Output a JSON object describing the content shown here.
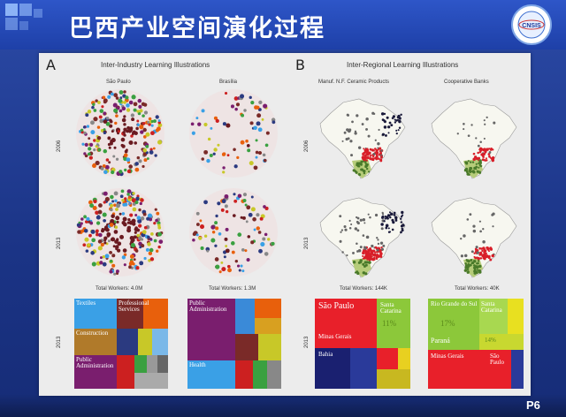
{
  "slide": {
    "title": "巴西产业空间演化过程",
    "page_number": "P6",
    "logo_text": "CNSIS"
  },
  "panel_a": {
    "letter": "A",
    "title": "Inter-Industry Learning Illustrations",
    "col1": "São Paulo",
    "col2": "Brasília",
    "year_top": "2006",
    "year_mid": "2013",
    "year_bottom": "2013",
    "workers1": "Total Workers: 4.0M",
    "workers2": "Total Workers: 1.3M",
    "tm1_labels": [
      "Textiles",
      "Professional Services",
      "Construction",
      "Public Administration"
    ],
    "tm2_labels": [
      "Public Administration",
      "Health"
    ]
  },
  "panel_b": {
    "letter": "B",
    "title": "Inter-Regional Learning Illustrations",
    "col1": "Manuf. N.F. Ceramic Products",
    "col2": "Cooperative Banks",
    "year_top": "2006",
    "year_mid": "2013",
    "year_bottom": "2013",
    "workers1": "Total Workers: 144K",
    "workers2": "Total Workers: 40K",
    "tm1_labels": [
      "São Paulo",
      "11%",
      "Santa Catarina",
      "Minas Gerais",
      "Bahia"
    ],
    "tm2_labels": [
      "Rio Grande do Sul",
      "Santa Catarina",
      "17%",
      "14%",
      "Paraná",
      "Minas Gerais",
      "São Paulo"
    ]
  }
}
